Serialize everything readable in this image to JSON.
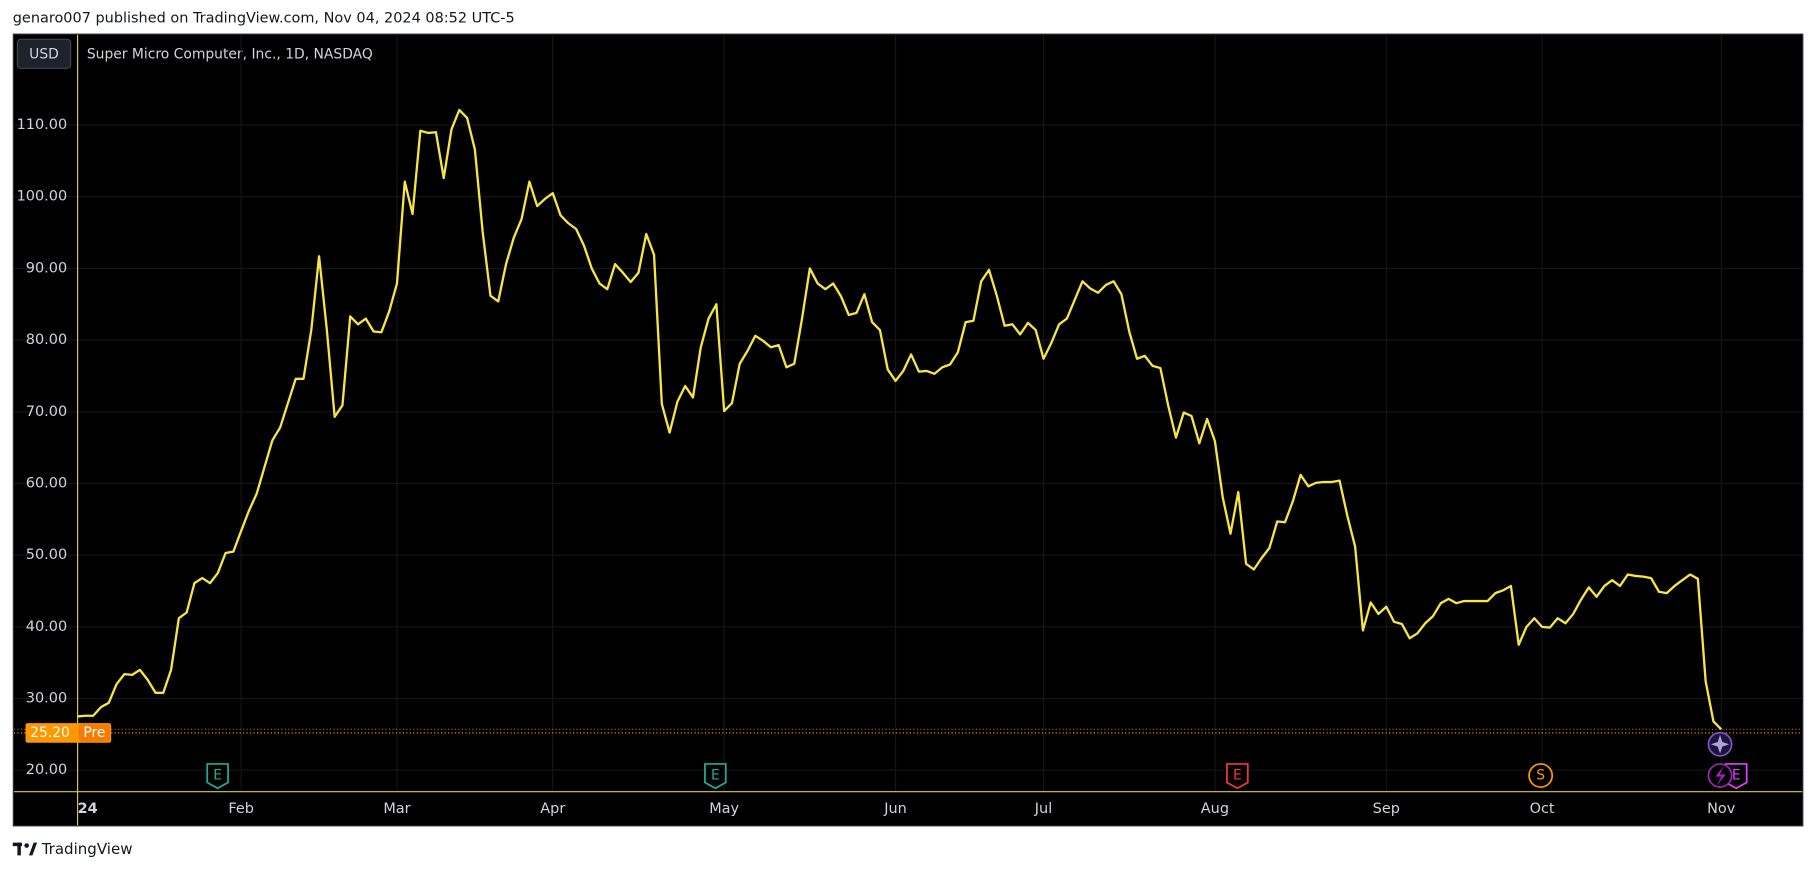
{
  "header": {
    "title": "genaro007 published on TradingView.com, Nov 04, 2024 08:52 UTC-5",
    "currency": "USD"
  },
  "footer": {
    "brand": "TradingView"
  },
  "chart_data": {
    "type": "line",
    "title": "Super Micro Computer, Inc., 1D, NASDAQ",
    "color": "#f7e640",
    "grid": true,
    "ylim": [
      17,
      122.6
    ],
    "yticks": [
      {
        "value": 20,
        "label": "20.00"
      },
      {
        "value": 30,
        "label": "30.00"
      },
      {
        "value": 40,
        "label": "40.00"
      },
      {
        "value": 50,
        "label": "50.00"
      },
      {
        "value": 60,
        "label": "60.00"
      },
      {
        "value": 70,
        "label": "70.00"
      },
      {
        "value": 80,
        "label": "80.00"
      },
      {
        "value": 90,
        "label": "90.00"
      },
      {
        "value": 100,
        "label": "100.00"
      },
      {
        "value": 110,
        "label": "110.00"
      }
    ],
    "categories": [
      "24",
      null,
      null,
      null,
      null,
      null,
      null,
      null,
      null,
      null,
      null,
      null,
      null,
      null,
      null,
      null,
      null,
      null,
      null,
      null,
      null,
      "Feb",
      null,
      null,
      null,
      null,
      null,
      null,
      null,
      null,
      null,
      null,
      null,
      null,
      null,
      null,
      null,
      null,
      null,
      null,
      null,
      "Mar",
      null,
      null,
      null,
      null,
      null,
      null,
      null,
      null,
      null,
      null,
      null,
      null,
      null,
      null,
      null,
      null,
      null,
      null,
      null,
      "Apr",
      null,
      null,
      null,
      null,
      null,
      null,
      null,
      null,
      null,
      null,
      null,
      null,
      null,
      null,
      null,
      null,
      null,
      null,
      null,
      null,
      null,
      "May",
      null,
      null,
      null,
      null,
      null,
      null,
      null,
      null,
      null,
      null,
      null,
      null,
      null,
      null,
      null,
      null,
      null,
      null,
      null,
      null,
      null,
      "Jun",
      null,
      null,
      null,
      null,
      null,
      null,
      null,
      null,
      null,
      null,
      null,
      null,
      null,
      null,
      null,
      null,
      null,
      null,
      "Jul",
      null,
      null,
      null,
      null,
      null,
      null,
      null,
      null,
      null,
      null,
      null,
      null,
      null,
      null,
      null,
      null,
      null,
      null,
      null,
      null,
      null,
      "Aug",
      null,
      null,
      null,
      null,
      null,
      null,
      null,
      null,
      null,
      null,
      null,
      null,
      null,
      null,
      null,
      null,
      null,
      null,
      null,
      null,
      null,
      "Sep",
      null,
      null,
      null,
      null,
      null,
      null,
      null,
      null,
      null,
      null,
      null,
      null,
      null,
      null,
      null,
      null,
      null,
      null,
      null,
      "Oct",
      null,
      null,
      null,
      null,
      null,
      null,
      null,
      null,
      null,
      null,
      null,
      null,
      null,
      null,
      null,
      null,
      null,
      null,
      null,
      null,
      null,
      null,
      "Nov"
    ],
    "values": [
      27.5,
      27.6,
      27.6,
      28.8,
      29.4,
      32.0,
      33.4,
      33.3,
      34.0,
      32.6,
      30.8,
      30.8,
      34.0,
      41.2,
      42.0,
      46.1,
      46.8,
      46.1,
      47.5,
      50.3,
      50.5,
      53.4,
      56.2,
      58.6,
      62.3,
      66.0,
      67.8,
      71.2,
      74.6,
      74.6,
      81.4,
      91.7,
      81.4,
      69.3,
      70.9,
      83.3,
      82.2,
      83.0,
      81.2,
      81.1,
      84.0,
      87.9,
      102.1,
      97.6,
      109.2,
      108.9,
      109.0,
      102.6,
      109.4,
      112.1,
      111.0,
      106.6,
      95.1,
      86.2,
      85.4,
      90.6,
      94.3,
      96.9,
      102.1,
      98.7,
      99.7,
      100.5,
      97.4,
      96.3,
      95.5,
      93.2,
      90.0,
      87.9,
      87.1,
      90.6,
      89.4,
      88.1,
      89.4,
      94.8,
      91.9,
      71.1,
      67.1,
      71.4,
      73.6,
      72.0,
      79.0,
      83.0,
      85.0,
      70.1,
      71.2,
      76.7,
      78.5,
      80.6,
      79.9,
      79.0,
      79.3,
      76.2,
      76.7,
      83.0,
      90.0,
      87.9,
      87.1,
      87.9,
      86.1,
      83.5,
      83.8,
      86.4,
      82.5,
      81.4,
      75.9,
      74.3,
      75.7,
      78.0,
      75.6,
      75.7,
      75.3,
      76.2,
      76.6,
      78.3,
      82.5,
      82.7,
      88.2,
      89.8,
      86.2,
      82.0,
      82.2,
      80.8,
      82.4,
      81.4,
      77.4,
      79.6,
      82.2,
      83.0,
      85.6,
      88.2,
      87.2,
      86.6,
      87.7,
      88.2,
      86.4,
      81.2,
      77.4,
      77.8,
      76.4,
      76.1,
      70.9,
      66.4,
      69.9,
      69.4,
      65.6,
      69.0,
      65.9,
      58.1,
      53.0,
      58.8,
      48.8,
      48.0,
      49.6,
      51.0,
      54.7,
      54.6,
      57.5,
      61.2,
      59.6,
      60.1,
      60.2,
      60.2,
      60.4,
      55.5,
      51.2,
      39.5,
      43.4,
      41.8,
      42.8,
      40.7,
      40.4,
      38.4,
      39.1,
      40.5,
      41.5,
      43.3,
      43.9,
      43.3,
      43.6,
      43.6,
      43.6,
      43.6,
      44.7,
      45.1,
      45.7,
      37.5,
      40.0,
      41.2,
      40.0,
      39.9,
      41.2,
      40.5,
      41.8,
      43.8,
      45.5,
      44.2,
      45.7,
      46.5,
      45.7,
      47.3,
      47.1,
      47.0,
      46.8,
      44.9,
      44.7,
      45.7,
      46.5,
      47.3,
      46.7,
      32.4,
      26.8,
      25.7
    ],
    "pre_market": {
      "value": 25.2,
      "label": "25.20",
      "tag": "Pre",
      "color": "#ff9800"
    },
    "events": [
      {
        "label": "E",
        "color": "#22ab94"
      },
      {
        "label": "E",
        "color": "#22ab94"
      },
      {
        "label": "E",
        "color": "#f23645"
      },
      {
        "label": "S",
        "color": "#ff9800"
      },
      {
        "label": "E",
        "color": "#e040fb"
      }
    ]
  }
}
